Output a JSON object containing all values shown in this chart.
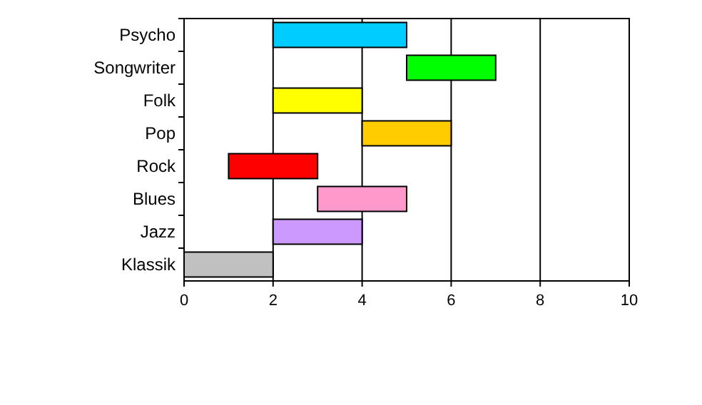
{
  "chart_data": {
    "type": "bar",
    "orientation": "horizontal",
    "categories": [
      "Psycho",
      "Songwriter",
      "Folk",
      "Pop",
      "Rock",
      "Blues",
      "Jazz",
      "Klassik"
    ],
    "base": [
      2,
      5,
      2,
      4,
      1,
      3,
      2,
      0
    ],
    "values": [
      3,
      2,
      2,
      2,
      2,
      2,
      2,
      2
    ],
    "colors": [
      "#00ccff",
      "#00ff00",
      "#ffff00",
      "#ffcc00",
      "#ff0000",
      "#ff99cc",
      "#cc99ff",
      "#c0c0c0"
    ],
    "xlim": [
      0,
      10
    ],
    "xticks": [
      0,
      2,
      4,
      6,
      8,
      10
    ],
    "grid": "x"
  }
}
